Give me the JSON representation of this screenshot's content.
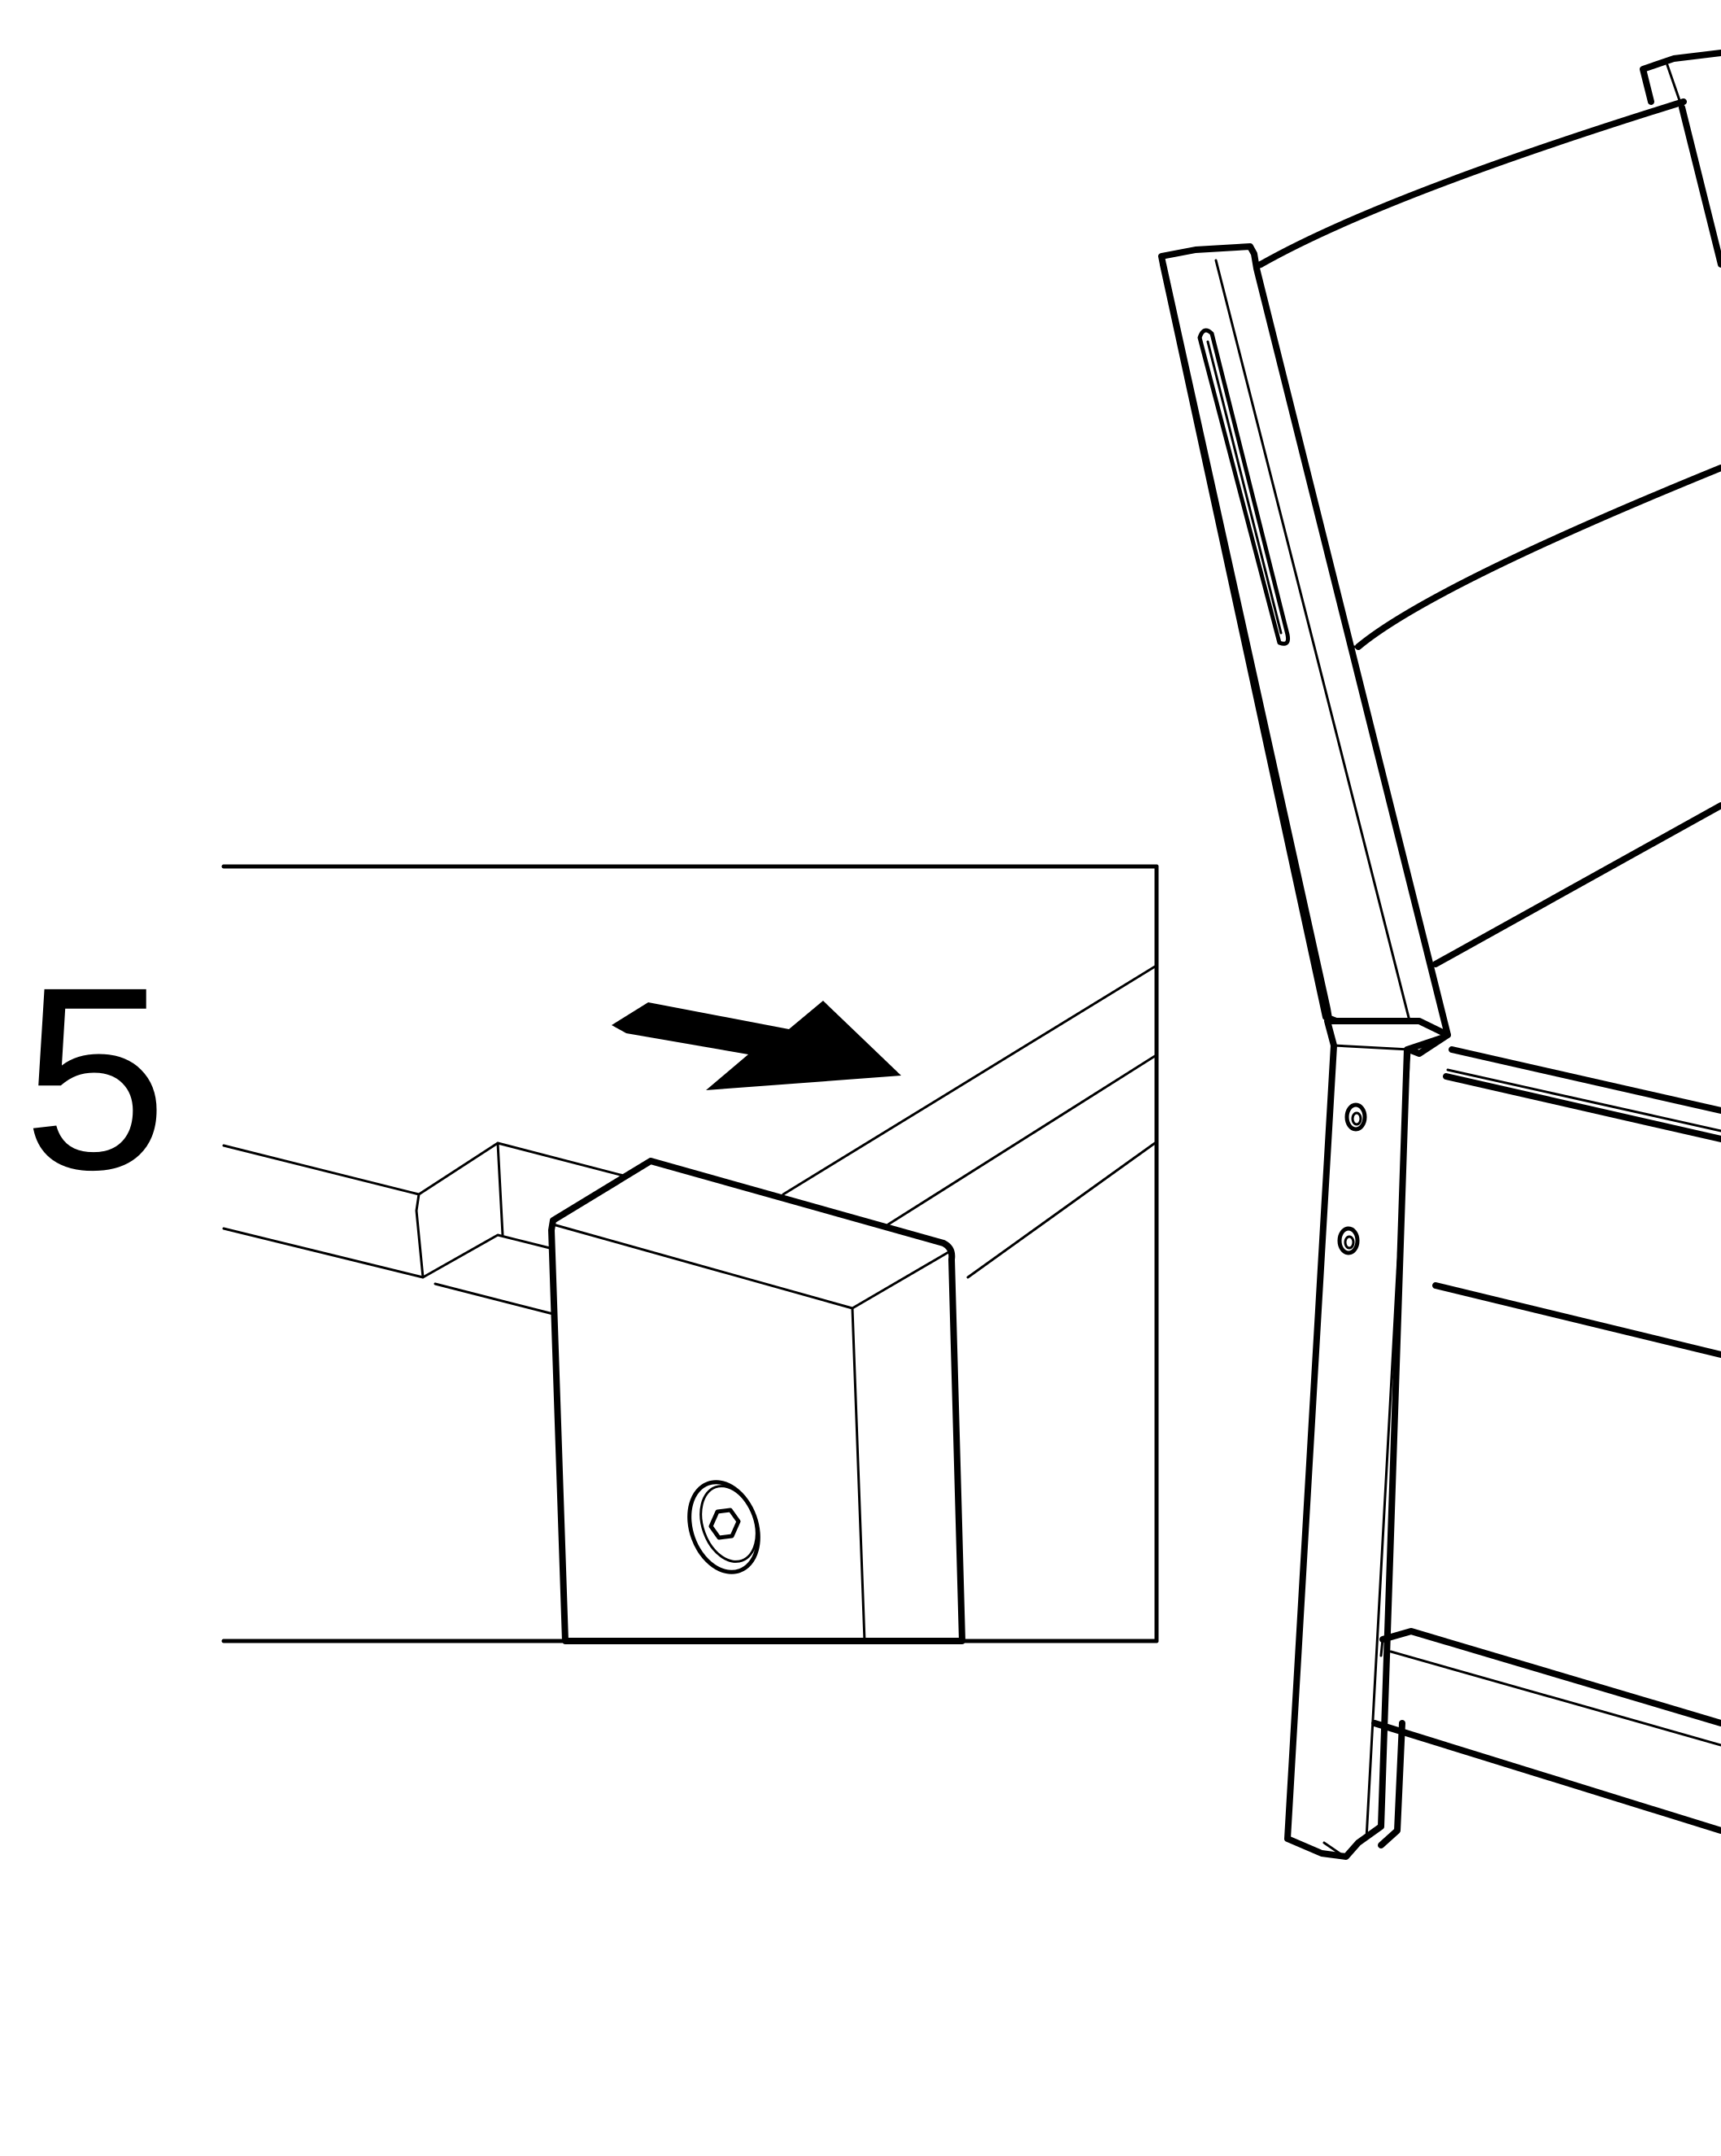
{
  "step": {
    "number": "5"
  },
  "colors": {
    "line": "#000000",
    "background": "#ffffff"
  },
  "icons": {
    "direction": "arrow-right-icon",
    "fastener": "hex-bolt-icon"
  }
}
